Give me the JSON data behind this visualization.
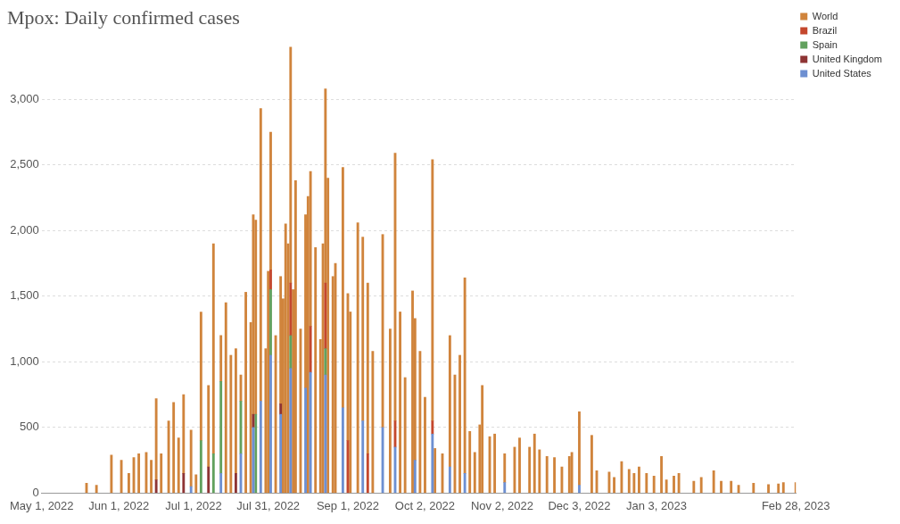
{
  "chart_data": {
    "type": "bar",
    "title": "Mpox: Daily confirmed cases",
    "stacked": true,
    "legend": "top right",
    "grid": "y",
    "xlim": [
      "2022-05-01",
      "2023-02-28"
    ],
    "xticks": [
      {
        "value": "2022-05-01",
        "label": "May 1, 2022"
      },
      {
        "value": "2022-06-01",
        "label": "Jun 1, 2022"
      },
      {
        "value": "2022-07-01",
        "label": "Jul 1, 2022"
      },
      {
        "value": "2022-07-31",
        "label": "Jul 31, 2022"
      },
      {
        "value": "2022-09-01",
        "label": "Sep 1, 2022"
      },
      {
        "value": "2022-10-02",
        "label": "Oct 2, 2022"
      },
      {
        "value": "2022-11-02",
        "label": "Nov 2, 2022"
      },
      {
        "value": "2022-12-03",
        "label": "Dec 3, 2022"
      },
      {
        "value": "2023-01-03",
        "label": "Jan 3, 2023"
      },
      {
        "value": "2023-02-28",
        "label": "Feb 28, 2023"
      }
    ],
    "ylim": [
      0,
      3400
    ],
    "yticks": [
      {
        "value": 0,
        "label": "0"
      },
      {
        "value": 500,
        "label": "500"
      },
      {
        "value": 1000,
        "label": "1,000"
      },
      {
        "value": 1500,
        "label": "1,500"
      },
      {
        "value": 2000,
        "label": "2,000"
      },
      {
        "value": 2500,
        "label": "2,500"
      },
      {
        "value": 3000,
        "label": "3,000"
      }
    ],
    "x": [
      "2022-05-19",
      "2022-05-23",
      "2022-05-29",
      "2022-06-02",
      "2022-06-05",
      "2022-06-07",
      "2022-06-09",
      "2022-06-12",
      "2022-06-14",
      "2022-06-16",
      "2022-06-18",
      "2022-06-21",
      "2022-06-23",
      "2022-06-25",
      "2022-06-27",
      "2022-06-30",
      "2022-07-02",
      "2022-07-04",
      "2022-07-07",
      "2022-07-09",
      "2022-07-12",
      "2022-07-14",
      "2022-07-16",
      "2022-07-18",
      "2022-07-20",
      "2022-07-22",
      "2022-07-24",
      "2022-07-25",
      "2022-07-26",
      "2022-07-28",
      "2022-07-30",
      "2022-07-31",
      "2022-08-01",
      "2022-08-03",
      "2022-08-05",
      "2022-08-06",
      "2022-08-07",
      "2022-08-08",
      "2022-08-09",
      "2022-08-10",
      "2022-08-11",
      "2022-08-13",
      "2022-08-15",
      "2022-08-16",
      "2022-08-17",
      "2022-08-19",
      "2022-08-21",
      "2022-08-22",
      "2022-08-23",
      "2022-08-24",
      "2022-08-26",
      "2022-08-27",
      "2022-08-30",
      "2022-09-01",
      "2022-09-02",
      "2022-09-05",
      "2022-09-07",
      "2022-09-09",
      "2022-09-11",
      "2022-09-15",
      "2022-09-18",
      "2022-09-20",
      "2022-09-22",
      "2022-09-24",
      "2022-09-27",
      "2022-09-28",
      "2022-09-30",
      "2022-10-02",
      "2022-10-05",
      "2022-10-06",
      "2022-10-09",
      "2022-10-12",
      "2022-10-14",
      "2022-10-16",
      "2022-10-18",
      "2022-10-20",
      "2022-10-22",
      "2022-10-24",
      "2022-10-25",
      "2022-10-28",
      "2022-10-30",
      "2022-11-03",
      "2022-11-07",
      "2022-11-09",
      "2022-11-13",
      "2022-11-15",
      "2022-11-17",
      "2022-11-20",
      "2022-11-23",
      "2022-11-26",
      "2022-11-29",
      "2022-11-30",
      "2022-12-03",
      "2022-12-08",
      "2022-12-10",
      "2022-12-15",
      "2022-12-17",
      "2022-12-20",
      "2022-12-23",
      "2022-12-25",
      "2022-12-27",
      "2022-12-30",
      "2023-01-02",
      "2023-01-05",
      "2023-01-07",
      "2023-01-10",
      "2023-01-12",
      "2023-01-18",
      "2023-01-21",
      "2023-01-26",
      "2023-01-29",
      "2023-02-02",
      "2023-02-05",
      "2023-02-11",
      "2023-02-17",
      "2023-02-21",
      "2023-02-23",
      "2023-02-28"
    ],
    "series": [
      {
        "name": "United States",
        "color": "#6d8fd1",
        "values": [
          null,
          null,
          null,
          null,
          null,
          null,
          null,
          null,
          null,
          null,
          null,
          null,
          null,
          null,
          null,
          50,
          null,
          null,
          null,
          null,
          150,
          null,
          null,
          null,
          300,
          null,
          null,
          500,
          null,
          700,
          null,
          null,
          1050,
          null,
          600,
          null,
          null,
          null,
          950,
          null,
          null,
          null,
          800,
          null,
          920,
          null,
          null,
          null,
          900,
          null,
          null,
          null,
          650,
          null,
          null,
          null,
          550,
          null,
          null,
          500,
          null,
          350,
          null,
          null,
          null,
          250,
          null,
          null,
          450,
          null,
          null,
          200,
          null,
          null,
          150,
          null,
          null,
          null,
          null,
          null,
          null,
          80,
          null,
          null,
          null,
          null,
          null,
          null,
          null,
          null,
          null,
          null,
          60,
          null,
          null,
          null,
          null,
          null,
          null,
          null,
          null,
          null,
          null,
          null,
          null,
          null,
          null,
          null,
          null,
          null,
          null,
          null,
          null,
          null,
          null,
          null,
          null,
          null
        ]
      },
      {
        "name": "United Kingdom",
        "color": "#8e3434",
        "values": [
          null,
          null,
          null,
          null,
          null,
          null,
          null,
          null,
          null,
          100,
          null,
          null,
          null,
          null,
          150,
          null,
          null,
          null,
          200,
          null,
          null,
          null,
          null,
          150,
          null,
          null,
          null,
          100,
          null,
          null,
          null,
          null,
          null,
          null,
          80,
          null,
          null,
          null,
          null,
          null,
          null,
          null,
          null,
          null,
          null,
          null,
          null,
          null,
          null,
          null,
          null,
          null,
          null,
          null,
          null,
          null,
          null,
          null,
          null,
          null,
          null,
          null,
          null,
          null,
          null,
          null,
          null,
          null,
          null,
          null,
          null,
          null,
          null,
          null,
          null,
          null,
          null,
          null,
          null,
          null,
          null,
          null,
          null,
          null,
          null,
          null,
          null,
          null,
          null,
          null,
          null,
          null,
          null,
          null,
          null,
          null,
          null,
          null,
          null,
          null,
          null,
          null,
          null,
          null,
          null,
          null,
          null,
          null,
          null,
          null,
          null,
          null,
          null,
          null,
          null,
          null,
          null,
          null
        ]
      },
      {
        "name": "Spain",
        "color": "#62a15e",
        "values": [
          null,
          null,
          null,
          null,
          null,
          null,
          null,
          null,
          null,
          null,
          null,
          null,
          null,
          null,
          null,
          null,
          null,
          400,
          null,
          300,
          700,
          null,
          null,
          null,
          400,
          null,
          null,
          null,
          600,
          null,
          null,
          null,
          500,
          null,
          null,
          null,
          null,
          null,
          250,
          null,
          null,
          null,
          null,
          null,
          null,
          null,
          null,
          null,
          200,
          null,
          null,
          null,
          null,
          null,
          null,
          null,
          null,
          null,
          null,
          null,
          null,
          null,
          null,
          null,
          null,
          null,
          null,
          null,
          null,
          null,
          null,
          null,
          null,
          null,
          null,
          null,
          null,
          null,
          null,
          null,
          null,
          null,
          null,
          null,
          null,
          null,
          null,
          null,
          null,
          null,
          null,
          null,
          null,
          null,
          null,
          null,
          null,
          null,
          null,
          null,
          null,
          null,
          null,
          null,
          null,
          null,
          null,
          null,
          null,
          null,
          null,
          null,
          null,
          null,
          null,
          null,
          null,
          null
        ]
      },
      {
        "name": "Brazil",
        "color": "#c4472d",
        "values": [
          null,
          null,
          null,
          null,
          null,
          null,
          null,
          null,
          null,
          null,
          null,
          null,
          null,
          null,
          null,
          null,
          null,
          null,
          null,
          null,
          null,
          null,
          null,
          null,
          null,
          null,
          null,
          null,
          null,
          null,
          null,
          null,
          150,
          null,
          null,
          null,
          null,
          null,
          400,
          null,
          null,
          null,
          null,
          null,
          350,
          null,
          null,
          null,
          500,
          null,
          null,
          null,
          null,
          400,
          null,
          null,
          null,
          300,
          null,
          null,
          null,
          200,
          null,
          null,
          null,
          null,
          null,
          null,
          100,
          null,
          null,
          null,
          null,
          null,
          null,
          null,
          null,
          null,
          null,
          null,
          null,
          null,
          null,
          null,
          null,
          null,
          null,
          null,
          null,
          null,
          null,
          null,
          null,
          null,
          null,
          null,
          null,
          null,
          null,
          null,
          null,
          null,
          null,
          null,
          null,
          null,
          null,
          null,
          null,
          null,
          null,
          null,
          null,
          null,
          null,
          null,
          null,
          null
        ]
      },
      {
        "name": "World",
        "color": "#d0843c",
        "values": [
          75,
          60,
          290,
          250,
          150,
          270,
          300,
          310,
          250,
          620,
          300,
          550,
          690,
          420,
          600,
          430,
          140,
          980,
          620,
          1600,
          350,
          1450,
          1050,
          950,
          200,
          1530,
          1300,
          1520,
          1480,
          2230,
          1100,
          1690,
          1050,
          1200,
          970,
          1480,
          2050,
          1900,
          1800,
          1550,
          2380,
          1250,
          1320,
          2260,
          1180,
          1870,
          1170,
          1900,
          1480,
          2400,
          1650,
          1750,
          1830,
          1120,
          1380,
          2060,
          1400,
          1300,
          1080,
          1470,
          1250,
          2040,
          1380,
          880,
          1540,
          1080,
          1080,
          730,
          1990,
          340,
          300,
          1000,
          900,
          1050,
          1490,
          470,
          310,
          520,
          820,
          430,
          450,
          220,
          350,
          420,
          350,
          450,
          330,
          280,
          270,
          200,
          280,
          310,
          560,
          440,
          170,
          160,
          120,
          240,
          180,
          150,
          200,
          150,
          130,
          280,
          100,
          130,
          150,
          90,
          120,
          170,
          90,
          90,
          60,
          75,
          65,
          70,
          80,
          80
        ]
      }
    ]
  }
}
